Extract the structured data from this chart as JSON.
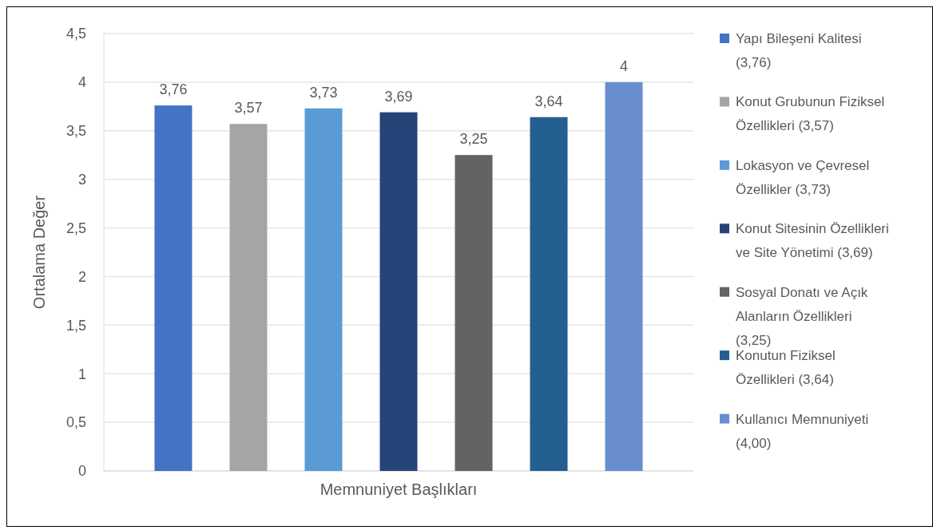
{
  "chart_data": {
    "type": "bar",
    "xlabel": "Memnuniyet Başlıkları",
    "ylabel": "Ortalama Değer",
    "categories": [
      null
    ],
    "series": [
      {
        "name": "Yapı Bileşeni Kalitesi (3,76)",
        "color": "#4472c4",
        "values": [
          3.76
        ],
        "value_labels": [
          "3,76"
        ]
      },
      {
        "name": "Konut Grubunun Fiziksel Özellikleri (3,57)",
        "color": "#a5a5a5",
        "values": [
          3.57
        ],
        "value_labels": [
          "3,57"
        ]
      },
      {
        "name": "Lokasyon ve Çevresel Özellikler (3,73)",
        "color": "#5b9bd5",
        "values": [
          3.73
        ],
        "value_labels": [
          "3,73"
        ]
      },
      {
        "name": "Konut Sitesinin Özellikleri ve Site Yönetimi (3,69)",
        "color": "#264478",
        "values": [
          3.69
        ],
        "value_labels": [
          "3,69"
        ]
      },
      {
        "name": "Sosyal Donatı ve Açık Alanların Özellikleri (3,25)",
        "color": "#636363",
        "values": [
          3.25
        ],
        "value_labels": [
          "3,25"
        ]
      },
      {
        "name": "Konutun Fiziksel Özellikleri (3,64)",
        "color": "#255e91",
        "values": [
          3.64
        ],
        "value_labels": [
          "3,64"
        ]
      },
      {
        "name": "Kullanıcı Memnuniyeti (4,00)",
        "color": "#698ed0",
        "values": [
          4
        ],
        "value_labels": [
          "4"
        ]
      }
    ],
    "ylim": [
      0,
      4.5
    ],
    "yticks": [
      0,
      {
        "value": 0.5,
        "label": "0,5"
      },
      1,
      {
        "value": 1.5,
        "label": "1,5"
      },
      2,
      {
        "value": 2.5,
        "label": "2,5"
      },
      3,
      {
        "value": 3.5,
        "label": "3,5"
      },
      4,
      {
        "value": 4.5,
        "label": "4,5"
      }
    ],
    "grid": "y",
    "legend": "right"
  }
}
